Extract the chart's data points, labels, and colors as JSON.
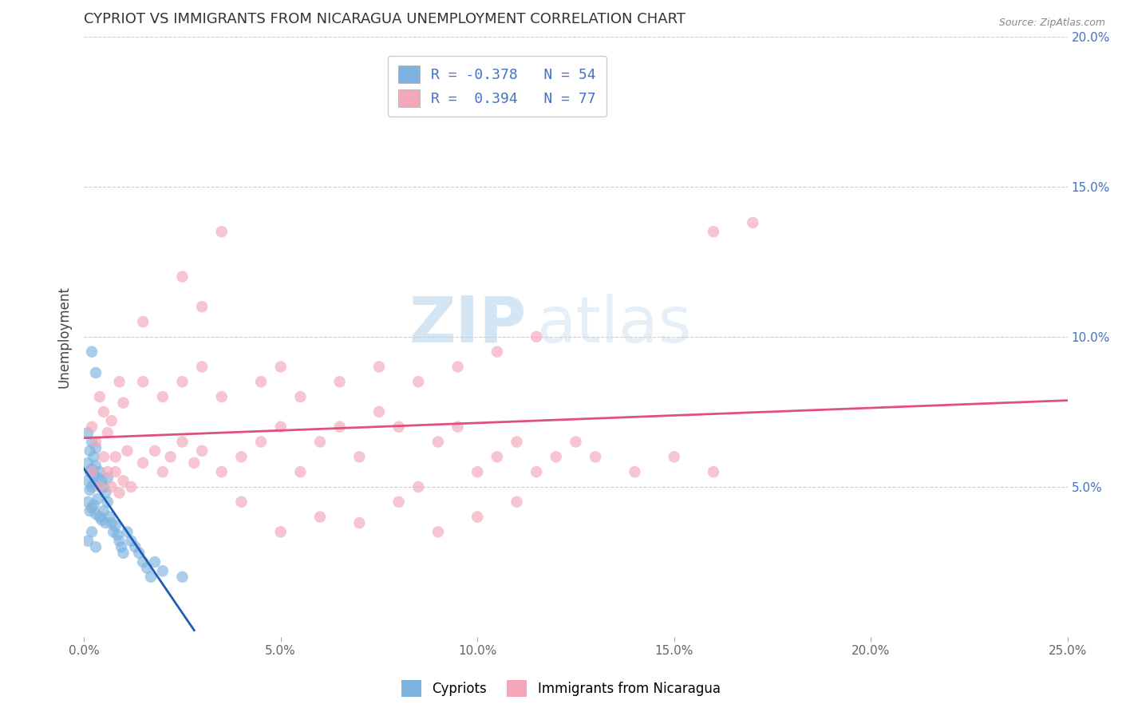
{
  "title": "CYPRIOT VS IMMIGRANTS FROM NICARAGUA UNEMPLOYMENT CORRELATION CHART",
  "source": "Source: ZipAtlas.com",
  "ylabel": "Unemployment",
  "x_tick_labels": [
    "0.0%",
    "5.0%",
    "10.0%",
    "15.0%",
    "20.0%",
    "25.0%"
  ],
  "x_tick_values": [
    0.0,
    5.0,
    10.0,
    15.0,
    20.0,
    25.0
  ],
  "y_tick_labels": [
    "5.0%",
    "10.0%",
    "15.0%",
    "20.0%"
  ],
  "y_tick_values": [
    5.0,
    10.0,
    15.0,
    20.0
  ],
  "xlim": [
    0.0,
    25.0
  ],
  "ylim": [
    0.0,
    20.0
  ],
  "cypriot_color": "#7eb3e0",
  "nicaragua_color": "#f4a7b9",
  "cypriot_line_color": "#1a5fb4",
  "nicaragua_line_color": "#e0507a",
  "legend_label_cypriot": "Cypriots",
  "legend_label_nicaragua": "Immigrants from Nicaragua",
  "R_cypriot": -0.378,
  "N_cypriot": 54,
  "R_nicaragua": 0.394,
  "N_nicaragua": 77,
  "watermark_zip": "ZIP",
  "watermark_atlas": "atlas",
  "background_color": "#ffffff",
  "grid_color": "#cccccc",
  "cypriot_scatter": [
    [
      0.2,
      9.5
    ],
    [
      0.3,
      8.8
    ],
    [
      0.1,
      6.8
    ],
    [
      0.2,
      6.5
    ],
    [
      0.15,
      6.2
    ],
    [
      0.25,
      6.0
    ],
    [
      0.3,
      6.3
    ],
    [
      0.1,
      5.8
    ],
    [
      0.2,
      5.6
    ],
    [
      0.15,
      5.5
    ],
    [
      0.25,
      5.4
    ],
    [
      0.3,
      5.7
    ],
    [
      0.35,
      5.3
    ],
    [
      0.1,
      5.2
    ],
    [
      0.2,
      5.0
    ],
    [
      0.15,
      4.9
    ],
    [
      0.25,
      5.1
    ],
    [
      0.4,
      5.5
    ],
    [
      0.45,
      5.2
    ],
    [
      0.5,
      5.0
    ],
    [
      0.55,
      4.8
    ],
    [
      0.6,
      5.3
    ],
    [
      0.1,
      4.5
    ],
    [
      0.2,
      4.3
    ],
    [
      0.15,
      4.2
    ],
    [
      0.25,
      4.4
    ],
    [
      0.3,
      4.1
    ],
    [
      0.35,
      4.6
    ],
    [
      0.4,
      4.0
    ],
    [
      0.45,
      3.9
    ],
    [
      0.5,
      4.2
    ],
    [
      0.55,
      3.8
    ],
    [
      0.6,
      4.5
    ],
    [
      0.65,
      4.0
    ],
    [
      0.7,
      3.8
    ],
    [
      0.75,
      3.5
    ],
    [
      0.8,
      3.7
    ],
    [
      0.85,
      3.4
    ],
    [
      0.9,
      3.2
    ],
    [
      0.95,
      3.0
    ],
    [
      1.0,
      2.8
    ],
    [
      1.1,
      3.5
    ],
    [
      1.2,
      3.2
    ],
    [
      1.3,
      3.0
    ],
    [
      1.4,
      2.8
    ],
    [
      1.5,
      2.5
    ],
    [
      1.6,
      2.3
    ],
    [
      1.7,
      2.0
    ],
    [
      1.8,
      2.5
    ],
    [
      2.0,
      2.2
    ],
    [
      2.5,
      2.0
    ],
    [
      0.1,
      3.2
    ],
    [
      0.2,
      3.5
    ],
    [
      0.3,
      3.0
    ]
  ],
  "nicaragua_scatter": [
    [
      0.2,
      7.0
    ],
    [
      0.3,
      6.5
    ],
    [
      0.4,
      8.0
    ],
    [
      0.5,
      7.5
    ],
    [
      0.6,
      6.8
    ],
    [
      0.7,
      7.2
    ],
    [
      0.8,
      6.0
    ],
    [
      0.9,
      8.5
    ],
    [
      1.0,
      7.8
    ],
    [
      1.1,
      6.2
    ],
    [
      0.2,
      5.5
    ],
    [
      0.4,
      5.0
    ],
    [
      0.5,
      6.0
    ],
    [
      0.6,
      5.5
    ],
    [
      0.7,
      5.0
    ],
    [
      0.8,
      5.5
    ],
    [
      0.9,
      4.8
    ],
    [
      1.0,
      5.2
    ],
    [
      1.2,
      5.0
    ],
    [
      1.5,
      5.8
    ],
    [
      1.8,
      6.2
    ],
    [
      2.0,
      5.5
    ],
    [
      2.2,
      6.0
    ],
    [
      2.5,
      6.5
    ],
    [
      2.8,
      5.8
    ],
    [
      3.0,
      6.2
    ],
    [
      3.5,
      5.5
    ],
    [
      4.0,
      6.0
    ],
    [
      4.5,
      6.5
    ],
    [
      5.0,
      7.0
    ],
    [
      5.5,
      5.5
    ],
    [
      6.0,
      6.5
    ],
    [
      6.5,
      7.0
    ],
    [
      7.0,
      6.0
    ],
    [
      7.5,
      7.5
    ],
    [
      8.0,
      7.0
    ],
    [
      8.5,
      5.0
    ],
    [
      9.0,
      6.5
    ],
    [
      9.5,
      7.0
    ],
    [
      10.0,
      5.5
    ],
    [
      10.5,
      6.0
    ],
    [
      11.0,
      6.5
    ],
    [
      11.5,
      5.5
    ],
    [
      12.0,
      6.0
    ],
    [
      12.5,
      6.5
    ],
    [
      13.0,
      6.0
    ],
    [
      14.0,
      5.5
    ],
    [
      15.0,
      6.0
    ],
    [
      16.0,
      5.5
    ],
    [
      1.5,
      8.5
    ],
    [
      2.0,
      8.0
    ],
    [
      2.5,
      8.5
    ],
    [
      3.0,
      9.0
    ],
    [
      3.5,
      8.0
    ],
    [
      4.5,
      8.5
    ],
    [
      5.5,
      8.0
    ],
    [
      6.5,
      8.5
    ],
    [
      7.5,
      9.0
    ],
    [
      8.5,
      8.5
    ],
    [
      9.5,
      9.0
    ],
    [
      10.5,
      9.5
    ],
    [
      11.5,
      10.0
    ],
    [
      3.5,
      13.5
    ],
    [
      2.5,
      12.0
    ],
    [
      16.0,
      13.5
    ],
    [
      17.0,
      13.8
    ],
    [
      1.5,
      10.5
    ],
    [
      3.0,
      11.0
    ],
    [
      5.0,
      9.0
    ],
    [
      4.0,
      4.5
    ],
    [
      5.0,
      3.5
    ],
    [
      6.0,
      4.0
    ],
    [
      7.0,
      3.8
    ],
    [
      8.0,
      4.5
    ],
    [
      9.0,
      3.5
    ],
    [
      10.0,
      4.0
    ],
    [
      11.0,
      4.5
    ]
  ]
}
